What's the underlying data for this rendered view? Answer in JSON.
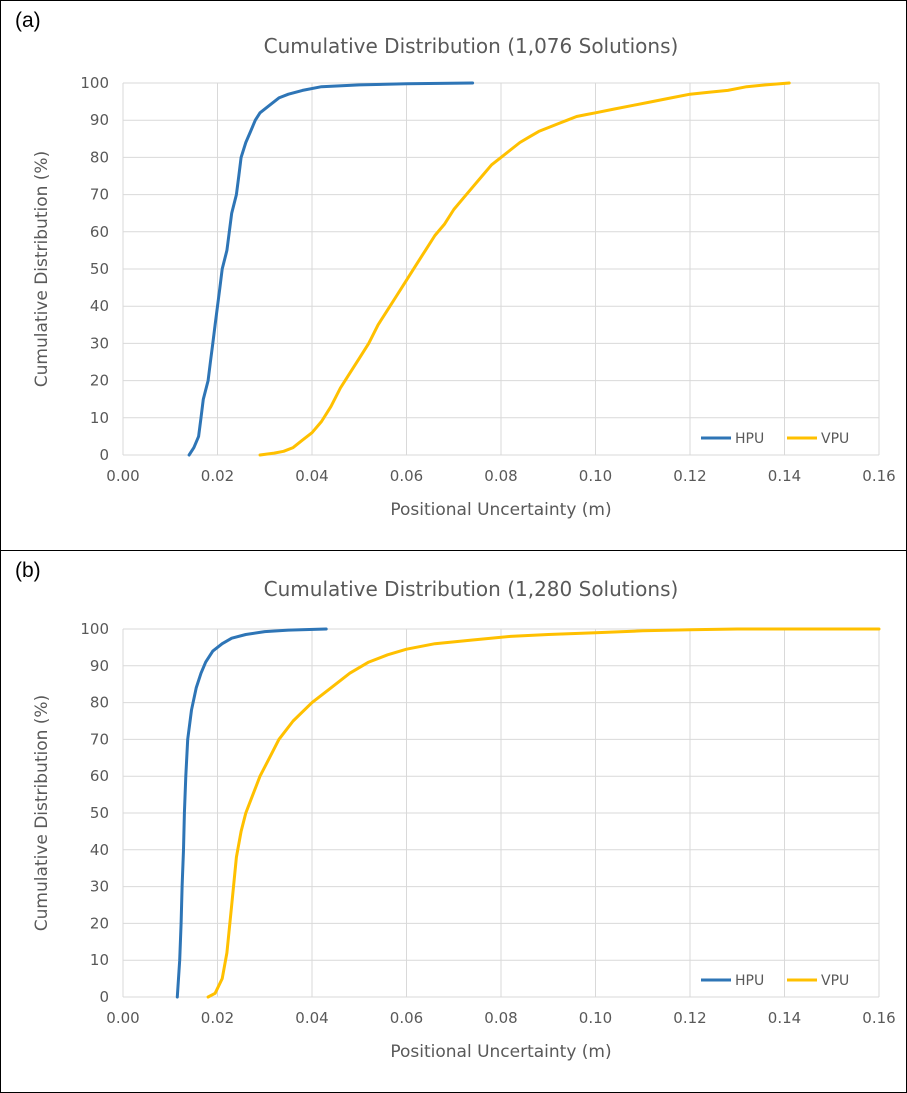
{
  "panels": [
    {
      "label": "(a)",
      "chart_data": {
        "type": "line",
        "title": "Cumulative Distribution (1,076 Solutions)",
        "xlabel": "Positional Uncertainty (m)",
        "ylabel": "Cumulative Distribution (%)",
        "xlim": [
          0,
          0.16
        ],
        "ylim": [
          0,
          100
        ],
        "xticks": [
          "0.00",
          "0.02",
          "0.04",
          "0.06",
          "0.08",
          "0.10",
          "0.12",
          "0.14",
          "0.16"
        ],
        "yticks": [
          "0",
          "10",
          "20",
          "30",
          "40",
          "50",
          "60",
          "70",
          "80",
          "90",
          "100"
        ],
        "grid": true,
        "legend_position": "bottom-right",
        "series": [
          {
            "name": "HPU",
            "color": "#2E75B6",
            "points": [
              [
                0.014,
                0
              ],
              [
                0.015,
                2
              ],
              [
                0.016,
                5
              ],
              [
                0.0165,
                10
              ],
              [
                0.017,
                15
              ],
              [
                0.018,
                20
              ],
              [
                0.0185,
                25
              ],
              [
                0.019,
                30
              ],
              [
                0.0195,
                35
              ],
              [
                0.02,
                40
              ],
              [
                0.0205,
                45
              ],
              [
                0.021,
                50
              ],
              [
                0.022,
                55
              ],
              [
                0.0225,
                60
              ],
              [
                0.023,
                65
              ],
              [
                0.024,
                70
              ],
              [
                0.0245,
                75
              ],
              [
                0.025,
                80
              ],
              [
                0.026,
                84
              ],
              [
                0.027,
                87
              ],
              [
                0.028,
                90
              ],
              [
                0.029,
                92
              ],
              [
                0.031,
                94
              ],
              [
                0.033,
                96
              ],
              [
                0.035,
                97
              ],
              [
                0.038,
                98
              ],
              [
                0.042,
                99
              ],
              [
                0.05,
                99.5
              ],
              [
                0.06,
                99.8
              ],
              [
                0.074,
                100
              ]
            ]
          },
          {
            "name": "VPU",
            "color": "#FFC000",
            "points": [
              [
                0.029,
                0
              ],
              [
                0.032,
                0.5
              ],
              [
                0.034,
                1
              ],
              [
                0.036,
                2
              ],
              [
                0.038,
                4
              ],
              [
                0.04,
                6
              ],
              [
                0.042,
                9
              ],
              [
                0.044,
                13
              ],
              [
                0.046,
                18
              ],
              [
                0.048,
                22
              ],
              [
                0.05,
                26
              ],
              [
                0.052,
                30
              ],
              [
                0.054,
                35
              ],
              [
                0.056,
                39
              ],
              [
                0.058,
                43
              ],
              [
                0.06,
                47
              ],
              [
                0.062,
                51
              ],
              [
                0.064,
                55
              ],
              [
                0.066,
                59
              ],
              [
                0.068,
                62
              ],
              [
                0.07,
                66
              ],
              [
                0.072,
                69
              ],
              [
                0.074,
                72
              ],
              [
                0.076,
                75
              ],
              [
                0.078,
                78
              ],
              [
                0.08,
                80
              ],
              [
                0.082,
                82
              ],
              [
                0.084,
                84
              ],
              [
                0.086,
                85.5
              ],
              [
                0.088,
                87
              ],
              [
                0.09,
                88
              ],
              [
                0.092,
                89
              ],
              [
                0.094,
                90
              ],
              [
                0.096,
                91
              ],
              [
                0.098,
                91.5
              ],
              [
                0.1,
                92
              ],
              [
                0.104,
                93
              ],
              [
                0.108,
                94
              ],
              [
                0.112,
                95
              ],
              [
                0.116,
                96
              ],
              [
                0.12,
                97
              ],
              [
                0.124,
                97.5
              ],
              [
                0.128,
                98
              ],
              [
                0.132,
                99
              ],
              [
                0.136,
                99.5
              ],
              [
                0.141,
                100
              ]
            ]
          }
        ]
      }
    },
    {
      "label": "(b)",
      "chart_data": {
        "type": "line",
        "title": "Cumulative Distribution (1,280 Solutions)",
        "xlabel": "Positional Uncertainty (m)",
        "ylabel": "Cumulative Distribution (%)",
        "xlim": [
          0,
          0.16
        ],
        "ylim": [
          0,
          100
        ],
        "xticks": [
          "0.00",
          "0.02",
          "0.04",
          "0.06",
          "0.08",
          "0.10",
          "0.12",
          "0.14",
          "0.16"
        ],
        "yticks": [
          "0",
          "10",
          "20",
          "30",
          "40",
          "50",
          "60",
          "70",
          "80",
          "90",
          "100"
        ],
        "grid": true,
        "legend_position": "bottom-right",
        "series": [
          {
            "name": "HPU",
            "color": "#2E75B6",
            "points": [
              [
                0.0115,
                0
              ],
              [
                0.012,
                10
              ],
              [
                0.0123,
                20
              ],
              [
                0.0125,
                30
              ],
              [
                0.0128,
                40
              ],
              [
                0.013,
                50
              ],
              [
                0.0133,
                60
              ],
              [
                0.0137,
                70
              ],
              [
                0.0145,
                78
              ],
              [
                0.0155,
                84
              ],
              [
                0.0165,
                88
              ],
              [
                0.0175,
                91
              ],
              [
                0.019,
                94
              ],
              [
                0.021,
                96
              ],
              [
                0.023,
                97.5
              ],
              [
                0.026,
                98.5
              ],
              [
                0.03,
                99.3
              ],
              [
                0.035,
                99.7
              ],
              [
                0.043,
                100
              ]
            ]
          },
          {
            "name": "VPU",
            "color": "#FFC000",
            "points": [
              [
                0.018,
                0
              ],
              [
                0.0195,
                1
              ],
              [
                0.021,
                5
              ],
              [
                0.022,
                12
              ],
              [
                0.023,
                25
              ],
              [
                0.024,
                38
              ],
              [
                0.025,
                45
              ],
              [
                0.026,
                50
              ],
              [
                0.0275,
                55
              ],
              [
                0.029,
                60
              ],
              [
                0.031,
                65
              ],
              [
                0.033,
                70
              ],
              [
                0.036,
                75
              ],
              [
                0.04,
                80
              ],
              [
                0.044,
                84
              ],
              [
                0.048,
                88
              ],
              [
                0.052,
                91
              ],
              [
                0.056,
                93
              ],
              [
                0.06,
                94.5
              ],
              [
                0.066,
                96
              ],
              [
                0.074,
                97
              ],
              [
                0.082,
                98
              ],
              [
                0.09,
                98.5
              ],
              [
                0.1,
                99
              ],
              [
                0.11,
                99.5
              ],
              [
                0.12,
                99.8
              ],
              [
                0.13,
                100
              ],
              [
                0.16,
                100
              ]
            ]
          }
        ]
      }
    }
  ]
}
